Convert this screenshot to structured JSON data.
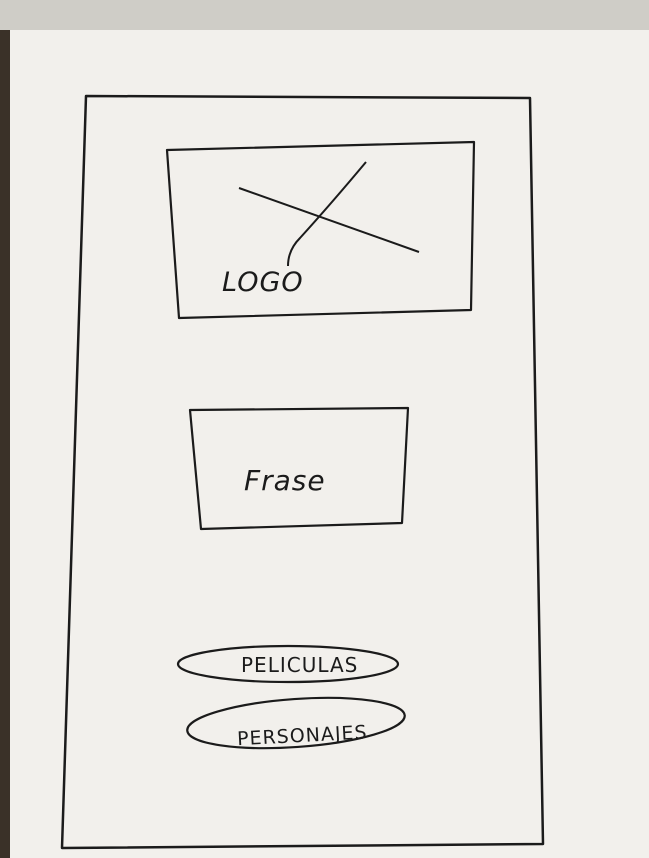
{
  "sketch": {
    "logo_label": "LOGO",
    "phrase_label": "Frase",
    "buttons": [
      {
        "label": "PELICULAS"
      },
      {
        "label": "PERSONAJES"
      }
    ]
  },
  "colors": {
    "ink": "#1b1b1b",
    "paper": "#f2f0ec",
    "background": "#b9b6ae"
  }
}
